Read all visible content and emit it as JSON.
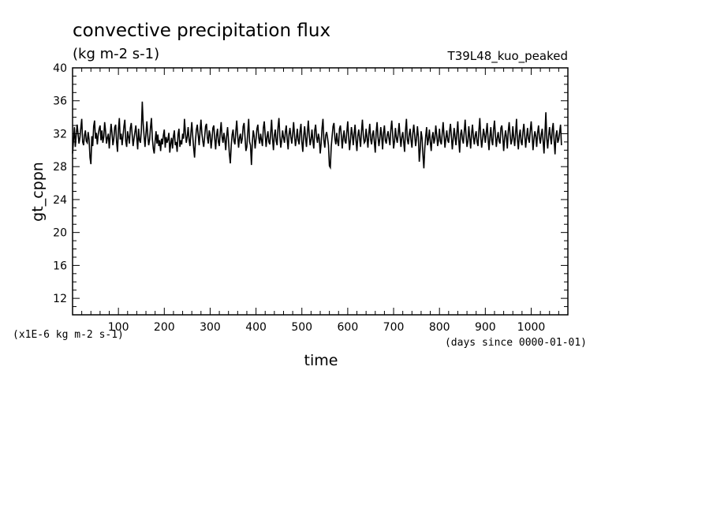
{
  "chart_data": {
    "type": "line",
    "title": "convective precipitation flux",
    "units_label": "(kg m-2 s-1)",
    "run_label": "T39L48_kuo_peaked",
    "ylabel": "gt_cppn",
    "xlabel": "time",
    "y_scale_note": "(x1E-6 kg m-2 s-1)",
    "x_units_note": "(days since 0000-01-01)",
    "xlim": [
      0,
      1080
    ],
    "ylim": [
      10,
      40
    ],
    "x_ticks": [
      100,
      200,
      300,
      400,
      500,
      600,
      700,
      800,
      900,
      1000
    ],
    "y_ticks": [
      12,
      16,
      20,
      24,
      28,
      32,
      36,
      40
    ],
    "series": [
      {
        "color": "#000000",
        "x_start": 0,
        "x_step": 2,
        "values": [
          29.6,
          31.2,
          32.8,
          30.4,
          31.9,
          33.1,
          32.0,
          30.8,
          31.5,
          32.7,
          33.8,
          31.0,
          30.6,
          31.8,
          32.4,
          31.1,
          30.9,
          32.2,
          31.3,
          29.1,
          28.3,
          31.7,
          30.5,
          32.9,
          33.6,
          31.4,
          32.1,
          30.7,
          31.9,
          32.6,
          33.0,
          31.2,
          32.4,
          30.9,
          31.6,
          33.4,
          32.3,
          30.8,
          31.5,
          32.0,
          30.2,
          31.8,
          33.2,
          32.1,
          30.6,
          31.4,
          32.8,
          33.1,
          31.0,
          29.8,
          32.5,
          33.9,
          31.3,
          32.0,
          30.6,
          31.7,
          32.9,
          33.7,
          31.1,
          30.4,
          32.3,
          31.6,
          30.8,
          32.7,
          33.3,
          31.9,
          30.5,
          31.4,
          32.2,
          33.0,
          31.5,
          30.1,
          32.6,
          31.2,
          30.9,
          32.4,
          35.9,
          33.2,
          31.7,
          30.4,
          32.0,
          33.5,
          31.8,
          30.6,
          31.3,
          32.8,
          33.9,
          31.4,
          30.2,
          29.6,
          31.1,
          32.3,
          30.8,
          31.9,
          30.5,
          31.2,
          29.9,
          31.4,
          30.7,
          31.8,
          32.5,
          30.3,
          31.6,
          30.9,
          31.3,
          32.1,
          29.7,
          30.8,
          31.5,
          30.2,
          31.7,
          32.4,
          30.6,
          31.0,
          29.8,
          31.9,
          32.6,
          30.4,
          31.2,
          30.7,
          32.0,
          31.4,
          33.8,
          32.2,
          30.9,
          31.6,
          32.8,
          31.3,
          30.5,
          32.1,
          33.4,
          31.7,
          30.3,
          29.1,
          31.2,
          32.5,
          33.1,
          31.8,
          30.6,
          32.3,
          33.7,
          32.0,
          31.1,
          30.4,
          31.6,
          32.9,
          33.2,
          31.5,
          30.8,
          32.4,
          31.9,
          30.2,
          31.3,
          32.7,
          33.0,
          31.4,
          30.1,
          31.8,
          32.6,
          31.0,
          30.5,
          32.2,
          33.4,
          31.6,
          30.9,
          32.1,
          31.3,
          30.0,
          31.7,
          32.8,
          31.2,
          29.5,
          28.4,
          30.6,
          31.9,
          32.5,
          31.1,
          30.7,
          32.3,
          33.6,
          31.8,
          30.3,
          31.5,
          32.0,
          30.8,
          31.4,
          32.9,
          33.3,
          31.6,
          29.9,
          30.4,
          32.2,
          33.8,
          31.0,
          30.6,
          28.2,
          30.9,
          32.4,
          31.7,
          30.2,
          31.3,
          32.6,
          33.1,
          31.5,
          30.8,
          32.0,
          31.2,
          30.5,
          32.7,
          33.5,
          31.9,
          30.4,
          31.6,
          32.3,
          31.0,
          30.7,
          32.1,
          33.7,
          31.4,
          30.0,
          31.8,
          32.5,
          31.1,
          30.6,
          32.8,
          33.9,
          31.7,
          30.3,
          31.2,
          32.4,
          31.5,
          30.9,
          32.2,
          33.0,
          31.3,
          30.1,
          31.9,
          32.7,
          31.6,
          30.8,
          32.0,
          33.4,
          31.8,
          30.5,
          31.4,
          32.6,
          31.2,
          30.7,
          32.3,
          33.2,
          31.0,
          29.8,
          31.7,
          32.9,
          31.5,
          30.4,
          32.1,
          33.6,
          31.9,
          30.6,
          31.3,
          32.5,
          31.1,
          30.2,
          32.4,
          33.1,
          31.6,
          30.9,
          32.0,
          31.4,
          29.6,
          30.8,
          32.7,
          33.8,
          31.2,
          30.3,
          31.8,
          32.2,
          31.5,
          30.6,
          28.1,
          27.9,
          30.4,
          31.7,
          32.9,
          33.3,
          31.4,
          30.7,
          32.1,
          31.0,
          30.5,
          32.6,
          33.0,
          31.8,
          30.2,
          31.5,
          32.4,
          31.1,
          30.8,
          32.2,
          33.5,
          31.6,
          30.0,
          31.3,
          32.8,
          31.9,
          30.6,
          32.0,
          33.1,
          31.2,
          29.9,
          31.7,
          32.5,
          31.4,
          30.4,
          32.3,
          33.7,
          31.8,
          30.9,
          31.1,
          32.6,
          31.5,
          30.3,
          32.0,
          33.2,
          31.3,
          30.7,
          31.9,
          32.4,
          31.0,
          29.7,
          32.2,
          33.4,
          31.6,
          30.5,
          31.4,
          32.8,
          31.7,
          30.1,
          32.1,
          33.0,
          31.2,
          30.8,
          31.8,
          32.3,
          31.4,
          30.6,
          32.5,
          33.6,
          31.9,
          30.2,
          31.1,
          32.7,
          31.5,
          30.9,
          32.0,
          33.3,
          31.7,
          30.4,
          31.6,
          32.2,
          31.0,
          29.8,
          32.4,
          33.8,
          31.3,
          30.7,
          31.9,
          32.6,
          31.2,
          30.3,
          32.1,
          33.1,
          31.8,
          30.5,
          31.4,
          32.9,
          31.6,
          28.6,
          30.1,
          32.3,
          31.5,
          29.4,
          27.8,
          30.2,
          31.7,
          32.8,
          30.6,
          31.3,
          32.5,
          31.0,
          29.9,
          31.6,
          32.2,
          30.8,
          31.4,
          33.0,
          31.9,
          30.5,
          31.2,
          32.6,
          31.1,
          30.7,
          32.0,
          33.4,
          31.8,
          30.3,
          31.5,
          32.4,
          31.2,
          30.9,
          32.3,
          33.2,
          31.7,
          30.1,
          31.4,
          32.7,
          31.6,
          30.6,
          32.1,
          33.5,
          31.3,
          29.7,
          31.9,
          32.5,
          31.4,
          30.8,
          32.2,
          33.7,
          31.8,
          30.4,
          31.1,
          32.9,
          31.5,
          30.2,
          32.0,
          33.1,
          31.6,
          30.7,
          31.8,
          32.3,
          31.0,
          30.5,
          32.4,
          33.9,
          31.7,
          30.3,
          31.3,
          32.6,
          31.9,
          30.9,
          32.1,
          33.3,
          31.4,
          30.0,
          31.6,
          32.8,
          31.2,
          30.6,
          32.5,
          33.6,
          31.8,
          30.4,
          31.5,
          32.2,
          31.1,
          30.8,
          32.7,
          33.0,
          31.7,
          29.9,
          31.4,
          32.4,
          31.6,
          30.2,
          32.3,
          33.4,
          31.9,
          30.7,
          31.2,
          32.9,
          31.5,
          30.5,
          32.0,
          33.8,
          31.3,
          30.1,
          31.7,
          32.5,
          31.0,
          30.6,
          32.2,
          33.2,
          31.8,
          30.3,
          31.6,
          32.7,
          31.4,
          30.9,
          32.4,
          33.5,
          31.9,
          30.0,
          31.3,
          32.3,
          31.7,
          30.4,
          32.1,
          33.0,
          31.5,
          30.8,
          31.9,
          32.6,
          31.1,
          29.6,
          32.0,
          34.6,
          31.4,
          30.2,
          31.7,
          32.8,
          31.6,
          30.7,
          32.5,
          33.3,
          31.2,
          29.5,
          31.8,
          32.4,
          30.9,
          31.3,
          32.2,
          33.1,
          30.6
        ]
      }
    ]
  }
}
